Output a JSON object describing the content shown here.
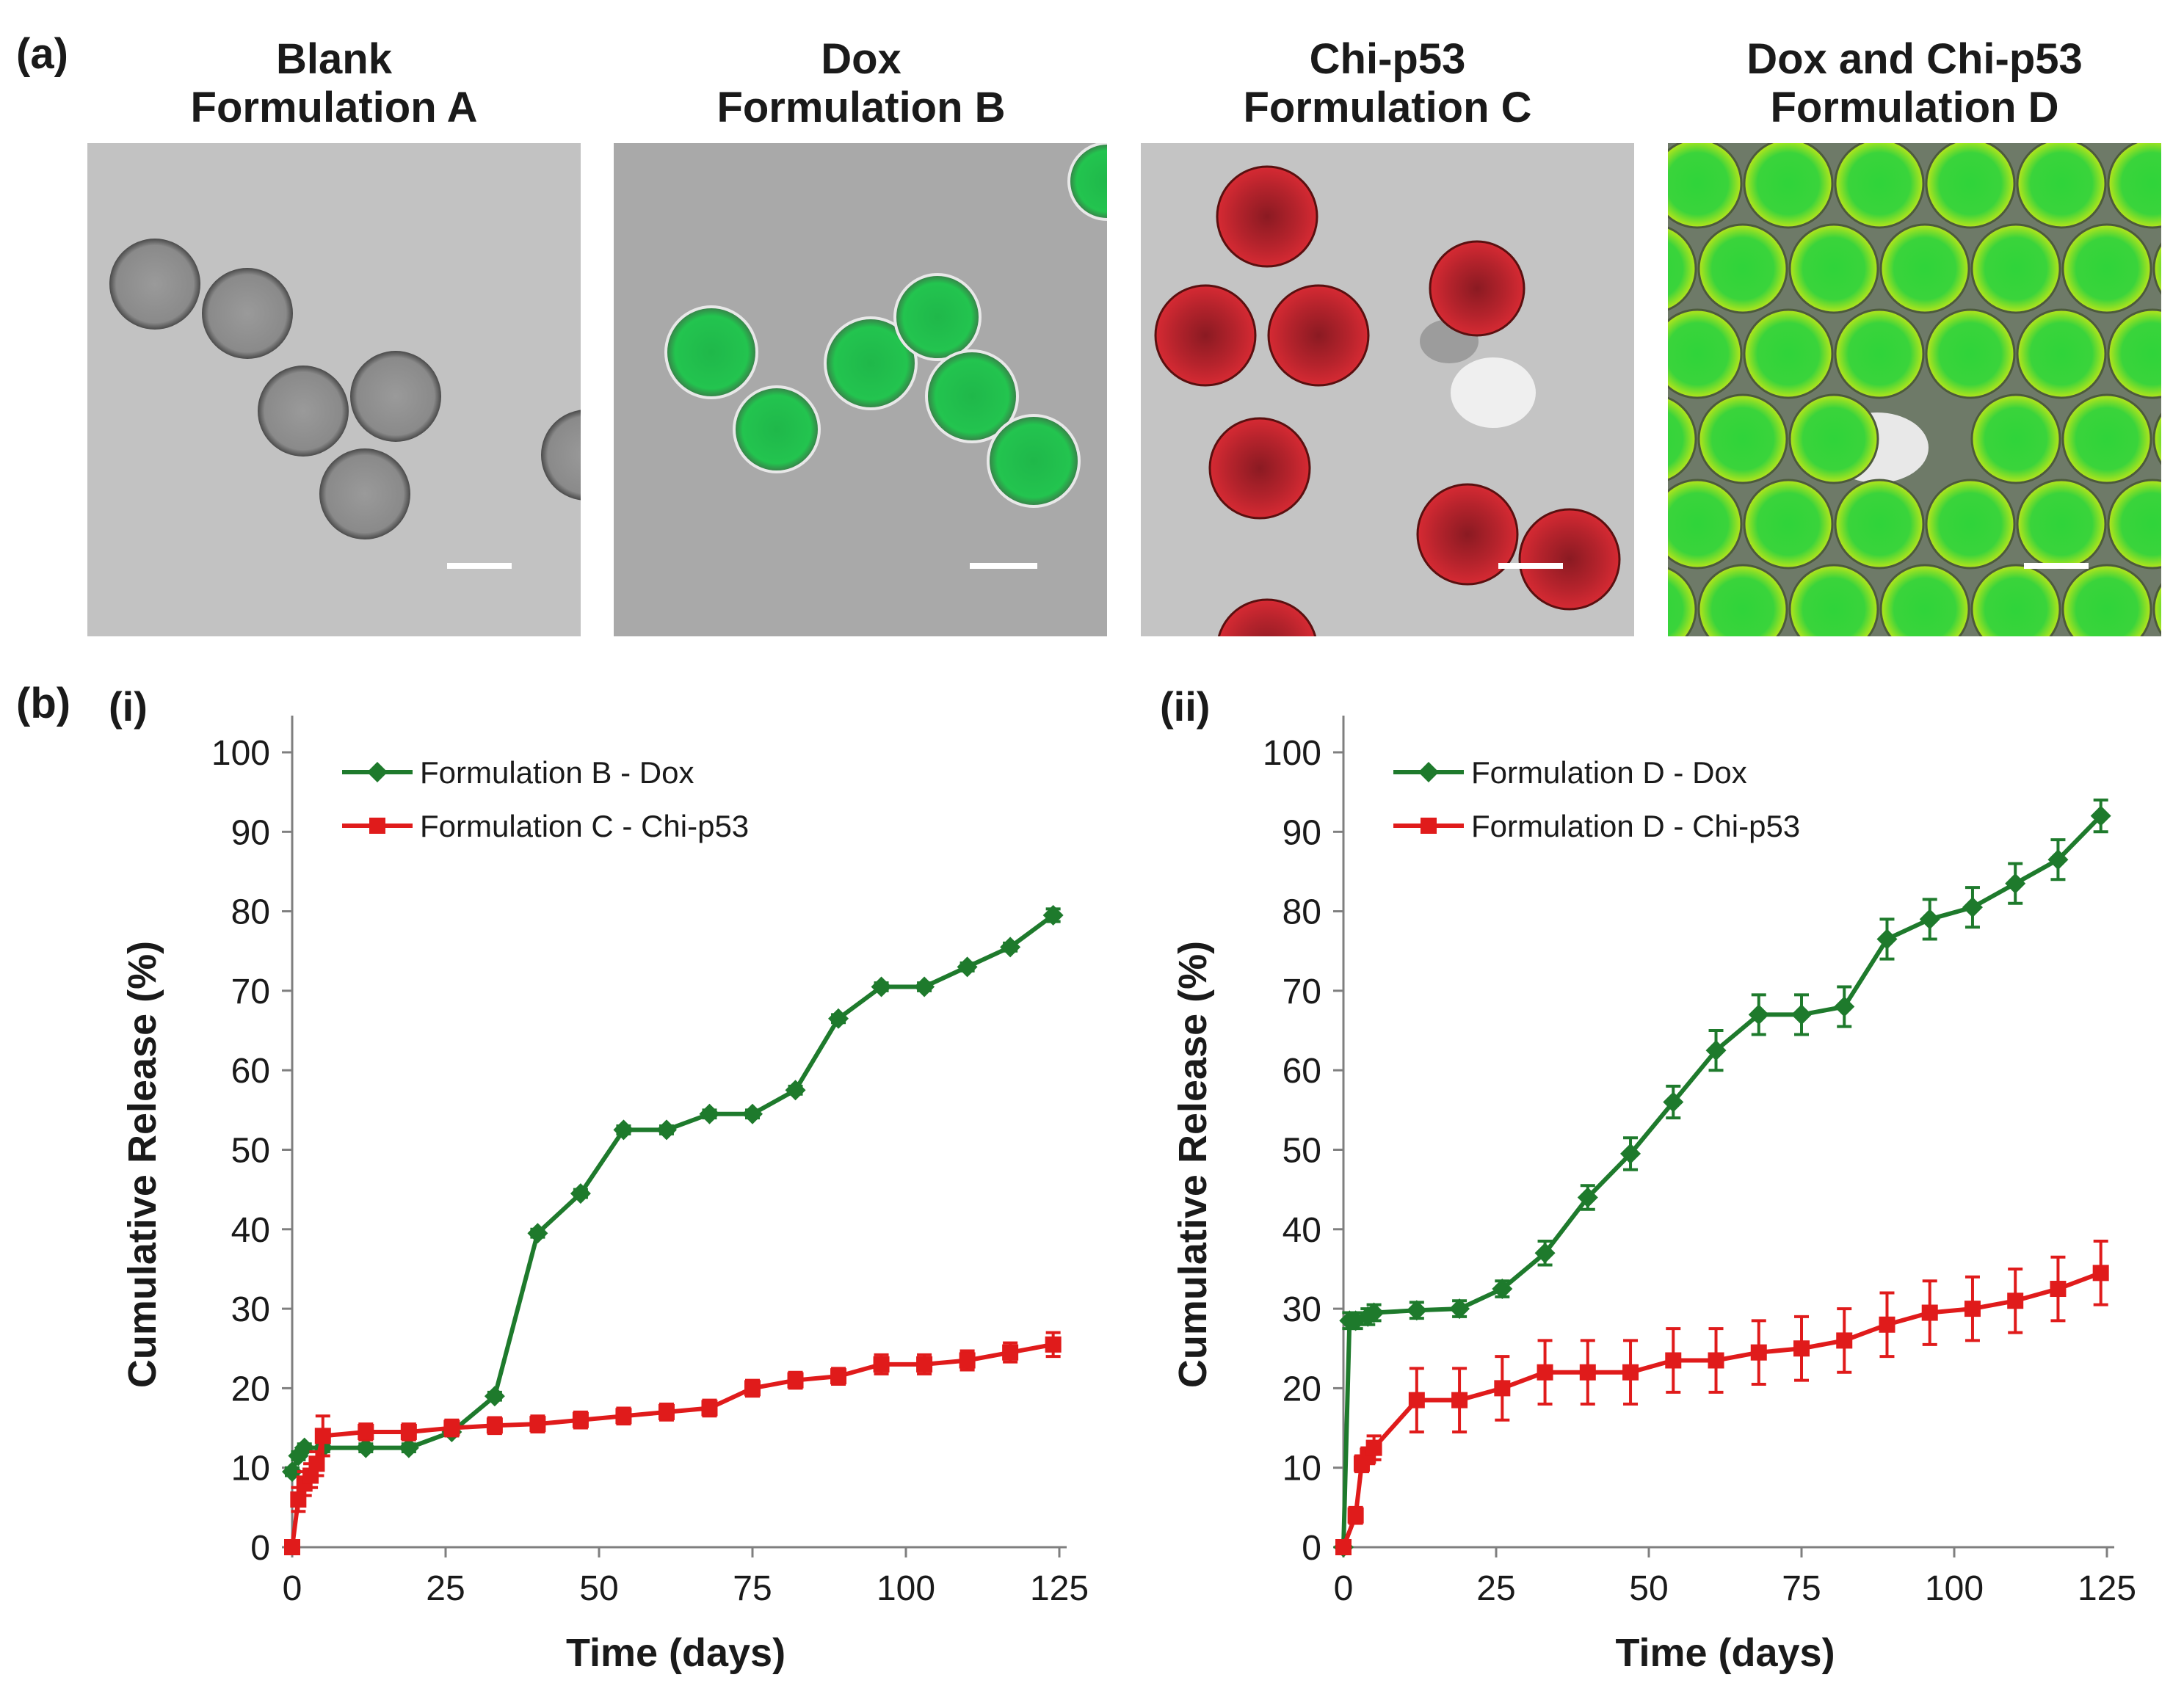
{
  "figure": {
    "panel_a_label": "(a)",
    "panel_b_label": "(b)",
    "images": [
      {
        "title_line1": "Blank",
        "title_line2": "Formulation A"
      },
      {
        "title_line1": "Dox",
        "title_line2": "Formulation B"
      },
      {
        "title_line1": "Chi-p53",
        "title_line2": "Formulation C"
      },
      {
        "title_line1": "Dox and Chi-p53",
        "title_line2": "Formulation D"
      }
    ]
  },
  "colors": {
    "dox": "#1e7a2c",
    "chi": "#e01b1b",
    "axis": "#7f7f7f",
    "micro_bg": "#bdbdbd"
  },
  "chart_data": [
    {
      "type": "line",
      "panel_label": "(i)",
      "xlabel": "Time (days)",
      "ylabel": "Cumulative Release (%)",
      "xlim": [
        0,
        125
      ],
      "ylim": [
        0,
        100
      ],
      "xticks": [
        0,
        25,
        50,
        75,
        100,
        125
      ],
      "yticks": [
        0,
        10,
        20,
        30,
        40,
        50,
        60,
        70,
        80,
        90,
        100
      ],
      "grid": false,
      "legend_position": "top-left",
      "series": [
        {
          "name": "Formulation B - Dox",
          "color_key": "dox",
          "marker": "diamond",
          "x": [
            0,
            1,
            2,
            5,
            12,
            19,
            26,
            33,
            40,
            47,
            54,
            61,
            68,
            75,
            82,
            89,
            96,
            103,
            110,
            117,
            124
          ],
          "y": [
            9.5,
            11.5,
            12.5,
            12.5,
            12.5,
            12.5,
            14.5,
            19,
            39.5,
            44.5,
            52.5,
            52.5,
            54.5,
            54.5,
            57.5,
            66.5,
            70.5,
            70.5,
            73,
            75.5,
            79.5
          ],
          "err": [
            0.5,
            0.5,
            0.5,
            0.5,
            0.5,
            0.5,
            0.5,
            0.5,
            0.5,
            0.5,
            0.5,
            0.5,
            0.5,
            0.5,
            0.5,
            0.5,
            0.5,
            0.5,
            0.5,
            0.5,
            0.8
          ]
        },
        {
          "name": "Formulation C - Chi-p53",
          "color_key": "chi",
          "marker": "square",
          "x": [
            0,
            1,
            2,
            3,
            4,
            5,
            12,
            19,
            26,
            33,
            40,
            47,
            54,
            61,
            68,
            75,
            82,
            89,
            96,
            103,
            110,
            117,
            124
          ],
          "y": [
            0,
            6,
            8,
            9,
            10.5,
            14,
            14.5,
            14.5,
            15,
            15.3,
            15.5,
            16,
            16.5,
            17,
            17.5,
            20,
            21,
            21.5,
            23,
            23,
            23.5,
            24.5,
            25.5
          ],
          "err": [
            0,
            1.5,
            1.5,
            1.5,
            1.5,
            2.5,
            1,
            1,
            1,
            1,
            1,
            1,
            1,
            1,
            1,
            1,
            1,
            1,
            1.2,
            1.2,
            1.2,
            1.2,
            1.5
          ]
        }
      ]
    },
    {
      "type": "line",
      "panel_label": "(ii)",
      "xlabel": "Time (days)",
      "ylabel": "Cumulative Release (%)",
      "xlim": [
        0,
        125
      ],
      "ylim": [
        0,
        100
      ],
      "xticks": [
        0,
        25,
        50,
        75,
        100,
        125
      ],
      "yticks": [
        0,
        10,
        20,
        30,
        40,
        50,
        60,
        70,
        80,
        90,
        100
      ],
      "grid": false,
      "legend_position": "top-left",
      "series": [
        {
          "name": "Formulation D - Dox",
          "color_key": "dox",
          "marker": "diamond",
          "x": [
            0,
            1,
            2,
            4,
            5,
            12,
            19,
            26,
            33,
            40,
            47,
            54,
            61,
            68,
            75,
            82,
            89,
            96,
            103,
            110,
            117,
            124
          ],
          "y": [
            0,
            28.5,
            28.5,
            29,
            29.5,
            29.8,
            30,
            32.5,
            37,
            44,
            49.5,
            56,
            62.5,
            67,
            67,
            68,
            76.5,
            79,
            80.5,
            83.5,
            86.5,
            92
          ],
          "err": [
            0,
            1,
            1,
            1,
            1,
            1,
            1,
            1,
            1.5,
            1.5,
            2,
            2,
            2.5,
            2.5,
            2.5,
            2.5,
            2.5,
            2.5,
            2.5,
            2.5,
            2.5,
            2
          ]
        },
        {
          "name": "Formulation D - Chi-p53",
          "color_key": "chi",
          "marker": "square",
          "x": [
            0,
            2,
            3,
            4,
            5,
            12,
            19,
            26,
            33,
            40,
            47,
            54,
            61,
            68,
            75,
            82,
            89,
            96,
            103,
            110,
            117,
            124
          ],
          "y": [
            0,
            4,
            10.5,
            11.5,
            12.5,
            18.5,
            18.5,
            20,
            22,
            22,
            22,
            23.5,
            23.5,
            24.5,
            25,
            26,
            28,
            29.5,
            30,
            31,
            32.5,
            34.5
          ],
          "err": [
            0,
            1,
            1,
            1,
            1.5,
            4,
            4,
            4,
            4,
            4,
            4,
            4,
            4,
            4,
            4,
            4,
            4,
            4,
            4,
            4,
            4,
            4
          ]
        }
      ]
    }
  ]
}
